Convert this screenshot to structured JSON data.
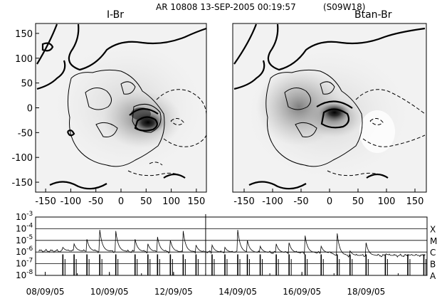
{
  "figure": {
    "title": "AR 10808 13-SEP-2005 00:19:57",
    "location": "(S09W18)"
  },
  "chart_data": [
    {
      "type": "heatmap",
      "panel_label": "I-Br",
      "xticks": [
        -150,
        -100,
        -50,
        0,
        50,
        100,
        150
      ],
      "yticks": [
        150,
        100,
        50,
        0,
        -50,
        -100,
        -150
      ],
      "xlim": [
        -170,
        170
      ],
      "ylim": [
        -170,
        170
      ],
      "spot_center": [
        45,
        -30
      ]
    },
    {
      "type": "heatmap",
      "panel_label": "Btan-Br",
      "xticks": [
        -150,
        -100,
        -50,
        0,
        50,
        100,
        150
      ],
      "yticks": [
        150,
        100,
        50,
        0,
        -50,
        -100,
        -150
      ],
      "xlim": [
        -170,
        170
      ],
      "ylim": [
        -170,
        170
      ],
      "spot_center": [
        45,
        -20
      ]
    },
    {
      "type": "line",
      "yscale": "log",
      "ylim": [
        1e-08,
        0.001
      ],
      "ytick_labels": [
        "10^-3",
        "10^-4",
        "10^-5",
        "10^-6",
        "10^-7",
        "10^-8"
      ],
      "class_labels": [
        "X",
        "M",
        "C",
        "B",
        "A"
      ],
      "xtick_labels": [
        "08/09/05",
        "10/09/05",
        "12/09/05",
        "14/09/05",
        "16/09/05",
        "18/09/05"
      ],
      "marker_date": "13/09/05",
      "flare_peaks": [
        {
          "day": 8.55,
          "peak": -5.6
        },
        {
          "day": 8.9,
          "peak": -5.3
        },
        {
          "day": 9.3,
          "peak": -4.9
        },
        {
          "day": 9.7,
          "peak": -4.1
        },
        {
          "day": 10.2,
          "peak": -4.2
        },
        {
          "day": 10.8,
          "peak": -4.9
        },
        {
          "day": 11.2,
          "peak": -5.3
        },
        {
          "day": 11.5,
          "peak": -4.7
        },
        {
          "day": 11.9,
          "peak": -5.0
        },
        {
          "day": 12.3,
          "peak": -4.2
        },
        {
          "day": 12.7,
          "peak": -5.4
        },
        {
          "day": 13.2,
          "peak": -5.4
        },
        {
          "day": 13.6,
          "peak": -5.6
        },
        {
          "day": 14.0,
          "peak": -4.1
        },
        {
          "day": 14.3,
          "peak": -5.0
        },
        {
          "day": 14.7,
          "peak": -5.5
        },
        {
          "day": 15.2,
          "peak": -5.3
        },
        {
          "day": 15.6,
          "peak": -5.2
        },
        {
          "day": 16.1,
          "peak": -4.6
        },
        {
          "day": 16.6,
          "peak": -5.5
        },
        {
          "day": 17.1,
          "peak": -4.4
        },
        {
          "day": 17.5,
          "peak": -5.9
        },
        {
          "day": 18.0,
          "peak": -5.2
        },
        {
          "day": 18.6,
          "peak": -6.1
        },
        {
          "day": 19.3,
          "peak": -6.2
        },
        {
          "day": 19.8,
          "peak": -6.2
        }
      ]
    }
  ]
}
